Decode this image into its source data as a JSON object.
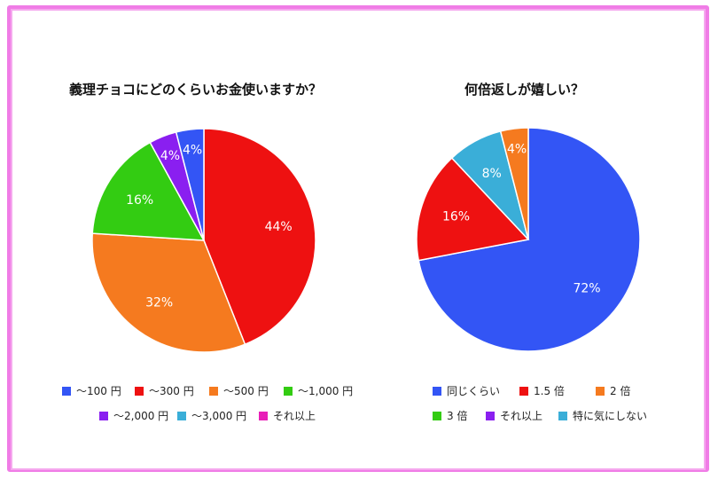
{
  "chart_data": [
    {
      "type": "pie",
      "title": "義理チョコにどのくらいお金使いますか？",
      "slices": [
        {
          "label": "～100 円",
          "value": 4,
          "display": "4%",
          "color": "#3355f5"
        },
        {
          "label": "～300 円",
          "value": 44,
          "display": "44%",
          "color": "#ee1111"
        },
        {
          "label": "～500 円",
          "value": 32,
          "display": "32%",
          "color": "#f57a1f"
        },
        {
          "label": "～1,000 円",
          "value": 16,
          "display": "16%",
          "color": "#33cc12"
        },
        {
          "label": "～2,000 円",
          "value": 4,
          "display": "4%",
          "color": "#8a1ff0"
        },
        {
          "label": "～3,000 円",
          "value": 0,
          "display": "",
          "color": "#3aaed8"
        },
        {
          "label": "それ以上",
          "value": 0,
          "display": "",
          "color": "#e81fb8"
        }
      ]
    },
    {
      "type": "pie",
      "title": "何倍返しが嬉しい？",
      "slices": [
        {
          "label": "同じくらい",
          "value": 72,
          "display": "72%",
          "color": "#3355f5"
        },
        {
          "label": "1.5 倍",
          "value": 16,
          "display": "16%",
          "color": "#ee1111"
        },
        {
          "label": "2 倍",
          "value": 4,
          "display": "4%",
          "color": "#f57a1f"
        },
        {
          "label": "3 倍",
          "value": 0,
          "display": "",
          "color": "#33cc12"
        },
        {
          "label": "それ以上",
          "value": 0,
          "display": "",
          "color": "#8a1ff0"
        },
        {
          "label": "特に気にしない",
          "value": 8,
          "display": "8%",
          "color": "#3aaed8"
        }
      ]
    }
  ]
}
